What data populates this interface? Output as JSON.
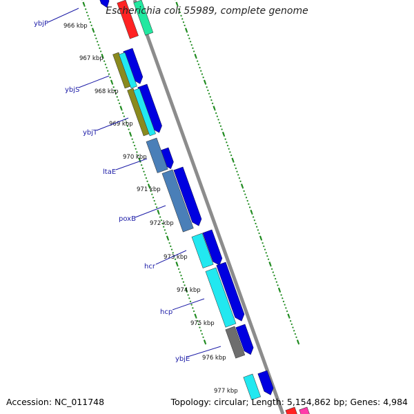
{
  "title": "Escherichia coli 55989, complete genome",
  "accession": "Accession: NC_011748",
  "summary": "Topology: circular; Length: 5,154,862 bp; Genes: 4,984",
  "kbp_labels": [
    "966 kbp",
    "967 kbp",
    "968 kbp",
    "969 kbp",
    "970 kbp",
    "971 kbp",
    "972 kbp",
    "973 kbp",
    "974 kbp",
    "975 kbp",
    "976 kbp",
    "977 kbp"
  ],
  "genes": [
    "ybjP",
    "ybjS",
    "ybjT",
    "ltaE",
    "poxB",
    "hcr",
    "hcp",
    "ybjE"
  ],
  "colors": {
    "backbone": "#8c8c8c",
    "tick_ring": "#1e8a1e",
    "cds_forward": "#0000e0",
    "gene_label": "#1a1aa6",
    "olive": "#8a8a1e",
    "cyan": "#22e8f0",
    "steel_blue": "#4a7fb8",
    "gray": "#6e6e6e",
    "red": "#ff2222",
    "mint": "#22e8a0",
    "pink": "#ff3aa8"
  }
}
